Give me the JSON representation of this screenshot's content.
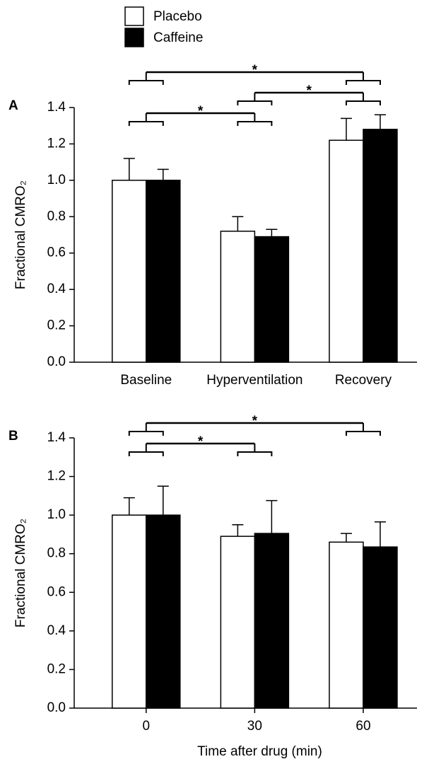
{
  "chart_data": [
    {
      "type": "bar",
      "panel_label": "A",
      "y_label": "Fractional CMRO₂",
      "categories": [
        "Baseline",
        "Hyperventilation",
        "Recovery"
      ],
      "series": [
        {
          "name": "Placebo",
          "color": "#ffffff",
          "values": [
            1.0,
            0.72,
            1.22
          ],
          "errors": [
            0.12,
            0.08,
            0.12
          ]
        },
        {
          "name": "Caffeine",
          "color": "#000000",
          "values": [
            1.0,
            0.69,
            1.28
          ],
          "errors": [
            0.06,
            0.04,
            0.08
          ]
        }
      ],
      "ylim": [
        0,
        1.4
      ],
      "yticks": [
        {
          "value": 0,
          "label": "0.0"
        },
        {
          "value": 0.2,
          "label": "0.2"
        },
        {
          "value": 0.4,
          "label": "0.4"
        },
        {
          "value": 0.6,
          "label": "0.6"
        },
        {
          "value": 0.8,
          "label": "0.8"
        },
        {
          "value": 1,
          "label": "1.0"
        },
        {
          "value": 1.2,
          "label": "1.2"
        },
        {
          "value": 1.4,
          "label": "1.4"
        }
      ],
      "significance": [
        {
          "groups": [
            "Baseline",
            "Hyperventilation"
          ],
          "label": "*"
        },
        {
          "groups": [
            "Hyperventilation",
            "Recovery"
          ],
          "label": "*"
        },
        {
          "groups": [
            "Baseline",
            "Recovery"
          ],
          "label": "*"
        }
      ]
    },
    {
      "type": "bar",
      "panel_label": "B",
      "y_label": "Fractional CMRO₂",
      "x_label": "Time after drug (min)",
      "categories": [
        "0",
        "30",
        "60"
      ],
      "series": [
        {
          "color": "#ffffff",
          "values": [
            1.0,
            0.89,
            0.86
          ],
          "errors": [
            0.09,
            0.06,
            0.045
          ]
        },
        {
          "color": "#000000",
          "values": [
            1.0,
            0.905,
            0.835
          ],
          "errors": [
            0.15,
            0.17,
            0.13
          ]
        }
      ],
      "ylim": [
        0,
        1.4
      ],
      "yticks": [
        {
          "value": 0,
          "label": "0.0"
        },
        {
          "value": 0.2,
          "label": "0.2"
        },
        {
          "value": 0.4,
          "label": "0.4"
        },
        {
          "value": 0.6,
          "label": "0.6"
        },
        {
          "value": 0.8,
          "label": "0.8"
        },
        {
          "value": 1,
          "label": "1.0"
        },
        {
          "value": 1.2,
          "label": "1.2"
        },
        {
          "value": 1.4,
          "label": "1.4"
        }
      ],
      "significance": [
        {
          "groups": [
            "0",
            "30"
          ],
          "label": "*"
        },
        {
          "groups": [
            "0",
            "60"
          ],
          "label": "*"
        }
      ]
    }
  ]
}
